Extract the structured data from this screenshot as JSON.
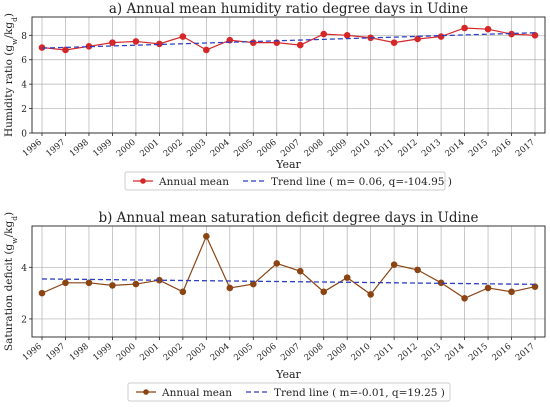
{
  "chart_data": [
    {
      "type": "line",
      "title": "a) Annual mean humidity ratio degree days in Udine",
      "xlabel": "Year",
      "ylabel": "Humidity ratio (g_w/kg_d)",
      "ylabel_parts": {
        "base": "Humidity ratio (g",
        "sub1": "w",
        "mid": "/kg",
        "sub2": "d",
        "end": ")"
      },
      "x": [
        "1996",
        "1997",
        "1998",
        "1999",
        "2000",
        "2001",
        "2002",
        "2003",
        "2004",
        "2005",
        "2006",
        "2007",
        "2008",
        "2009",
        "2010",
        "2011",
        "2012",
        "2013",
        "2014",
        "2015",
        "2016",
        "2017"
      ],
      "ylim": [
        0,
        9.5
      ],
      "yticks": [
        0,
        2,
        4,
        6,
        8
      ],
      "grid": true,
      "legend_position": "below",
      "series": [
        {
          "name": "Annual mean",
          "color": "#d62728",
          "style": "solid-marker",
          "values": [
            7.0,
            6.8,
            7.1,
            7.4,
            7.5,
            7.3,
            7.9,
            6.8,
            7.6,
            7.4,
            7.4,
            7.2,
            8.1,
            8.0,
            7.8,
            7.4,
            7.7,
            7.9,
            8.6,
            8.5,
            8.1,
            8.0
          ]
        },
        {
          "name": "Trend line ( m= 0.06, q=-104.95 )",
          "color": "#2c3ebf",
          "style": "dashed",
          "values": [
            6.95,
            7.01,
            7.07,
            7.13,
            7.19,
            7.25,
            7.31,
            7.37,
            7.43,
            7.49,
            7.55,
            7.61,
            7.67,
            7.73,
            7.79,
            7.85,
            7.91,
            7.97,
            8.03,
            8.09,
            8.15,
            8.21
          ]
        }
      ]
    },
    {
      "type": "line",
      "title": "b) Annual mean saturation deficit degree days in Udine",
      "xlabel": "Year",
      "ylabel": "Saturation deficit (g_w/kg_d)",
      "ylabel_parts": {
        "base": "Saturation deficit (g",
        "sub1": "w",
        "mid": "/kg",
        "sub2": "d",
        "end": ")"
      },
      "x": [
        "1996",
        "1997",
        "1998",
        "1999",
        "2000",
        "2001",
        "2002",
        "2003",
        "2004",
        "2005",
        "2006",
        "2007",
        "2008",
        "2009",
        "2010",
        "2011",
        "2012",
        "2013",
        "2014",
        "2015",
        "2016",
        "2017"
      ],
      "ylim": [
        1.3,
        5.6
      ],
      "yticks": [
        2,
        4
      ],
      "grid": true,
      "legend_position": "below",
      "series": [
        {
          "name": "Annual mean",
          "color": "#8b4513",
          "style": "solid-marker",
          "values": [
            3.0,
            3.4,
            3.4,
            3.3,
            3.35,
            3.5,
            3.05,
            5.2,
            3.2,
            3.35,
            4.15,
            3.85,
            3.05,
            3.6,
            2.95,
            4.1,
            3.9,
            3.4,
            2.8,
            3.2,
            3.05,
            3.25
          ]
        },
        {
          "name": "Trend line ( m=-0.01, q=19.25 )",
          "color": "#2c3ebf",
          "style": "dashed",
          "values": [
            3.55,
            3.54,
            3.53,
            3.52,
            3.51,
            3.5,
            3.49,
            3.48,
            3.47,
            3.46,
            3.45,
            3.44,
            3.43,
            3.42,
            3.41,
            3.4,
            3.39,
            3.38,
            3.37,
            3.36,
            3.35,
            3.34
          ]
        }
      ]
    }
  ]
}
